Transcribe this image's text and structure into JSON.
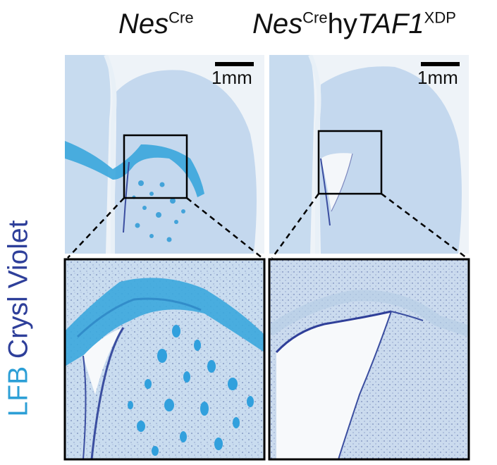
{
  "headers": {
    "left": {
      "gene": "Nes",
      "sup": "Cre"
    },
    "right": {
      "gene": "Nes",
      "sup1": "Cre",
      "mid": "hy",
      "gene2": "TAF1",
      "sup2": "XDP"
    }
  },
  "side_label": {
    "stain1": "LFB",
    "stain2": "Crysl Violet"
  },
  "scale_bars": {
    "left": "1mm",
    "right": "1mm"
  },
  "colors": {
    "lfb": "#2c9fd6",
    "crysl_violet": "#2e3f9a",
    "tissue": "#bfd5ea",
    "white_matter": "#3aa6dc"
  }
}
